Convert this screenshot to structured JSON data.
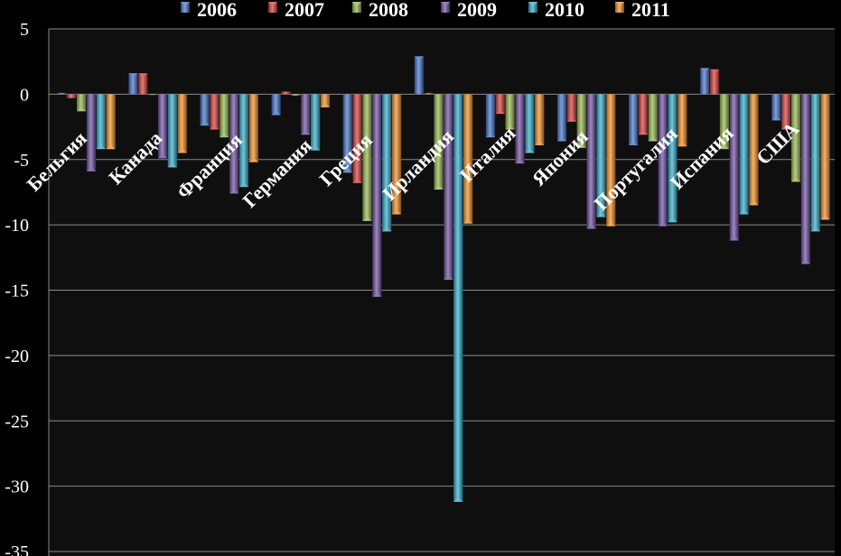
{
  "chart_data": {
    "type": "bar",
    "categories": [
      "Бельгия",
      "Канада",
      "Франция",
      "Германия",
      "Греция",
      "Ирландия",
      "Италия",
      "Япония",
      "Португалия",
      "Испания",
      "США"
    ],
    "series": [
      {
        "name": "2006",
        "color": "#3f6fc4",
        "values": [
          0.1,
          1.6,
          -2.4,
          -1.6,
          -6.0,
          2.9,
          -3.3,
          -3.6,
          -3.9,
          2.0,
          -2.0
        ]
      },
      {
        "name": "2007",
        "color": "#d03a36",
        "values": [
          -0.3,
          1.6,
          -2.7,
          0.2,
          -6.8,
          0.1,
          -1.5,
          -2.1,
          -3.1,
          1.9,
          -2.7
        ]
      },
      {
        "name": "2008",
        "color": "#8fb448",
        "values": [
          -1.3,
          0.0,
          -3.3,
          -0.1,
          -9.7,
          -7.3,
          -2.7,
          -4.1,
          -3.6,
          -4.2,
          -6.7
        ]
      },
      {
        "name": "2009",
        "color": "#6a4a9c",
        "values": [
          -5.9,
          -4.9,
          -7.6,
          -3.1,
          -15.5,
          -14.2,
          -5.3,
          -10.3,
          -10.1,
          -11.2,
          -13.0
        ]
      },
      {
        "name": "2010",
        "color": "#30a8c6",
        "values": [
          -4.2,
          -5.6,
          -7.1,
          -4.3,
          -10.5,
          -31.2,
          -4.5,
          -9.4,
          -9.8,
          -9.2,
          -10.5
        ]
      },
      {
        "name": "2011",
        "color": "#ee8a22",
        "values": [
          -4.2,
          -4.5,
          -5.2,
          -1.0,
          -9.2,
          -9.9,
          -3.9,
          -10.1,
          -4.0,
          -8.5,
          -9.6
        ]
      }
    ],
    "yticks": [
      5,
      0,
      -5,
      -10,
      -15,
      -20,
      -25,
      -30,
      -35
    ],
    "ylim": [
      -35,
      5
    ],
    "grid": true,
    "legend_position": "top"
  }
}
